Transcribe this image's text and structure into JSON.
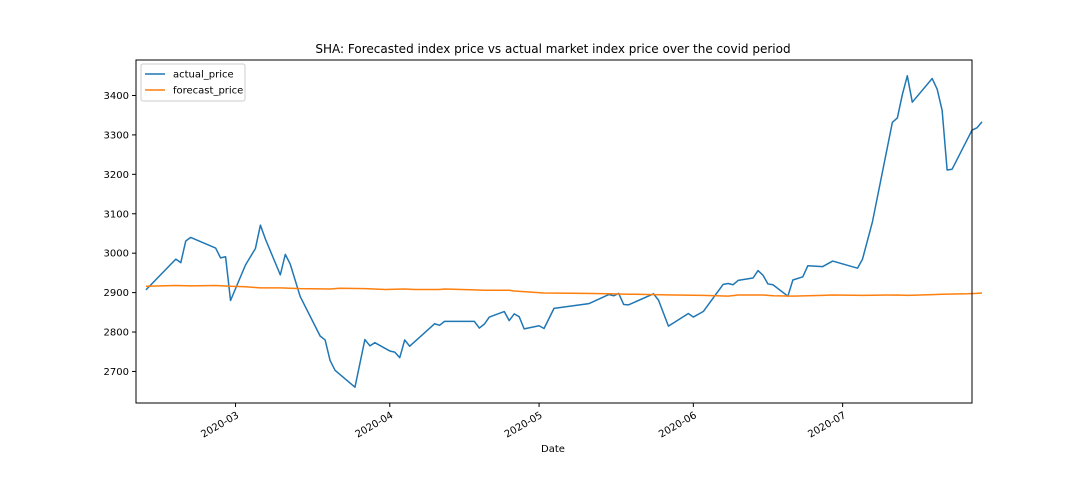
{
  "chart_data": {
    "type": "line",
    "title": "SHA: Forecasted index price vs actual market index price over the covid period",
    "xlabel": "Date",
    "ylabel": "",
    "x_range": [
      "2020-02-10",
      "2020-07-27"
    ],
    "ylim": [
      2620,
      3490
    ],
    "y_ticks": [
      2700,
      2800,
      2900,
      3000,
      3100,
      3200,
      3300,
      3400
    ],
    "x_ticks": [
      {
        "date": "2020-03-01",
        "label": "2020-03"
      },
      {
        "date": "2020-04-01",
        "label": "2020-04"
      },
      {
        "date": "2020-05-01",
        "label": "2020-05"
      },
      {
        "date": "2020-06-01",
        "label": "2020-06"
      },
      {
        "date": "2020-07-01",
        "label": "2020-07"
      }
    ],
    "grid": false,
    "legend": "top-left",
    "series": [
      {
        "name": "actual_price",
        "color": "#1f77b4",
        "points": [
          [
            "2020-02-12",
            2907
          ],
          [
            "2020-02-18",
            2985
          ],
          [
            "2020-02-19",
            2976
          ],
          [
            "2020-02-20",
            3031
          ],
          [
            "2020-02-21",
            3040
          ],
          [
            "2020-02-26",
            3013
          ],
          [
            "2020-02-27",
            2988
          ],
          [
            "2020-02-28",
            2991
          ],
          [
            "2020-02-29",
            2880
          ],
          [
            "2020-03-03",
            2970
          ],
          [
            "2020-03-05",
            3012
          ],
          [
            "2020-03-06",
            3071
          ],
          [
            "2020-03-07",
            3036
          ],
          [
            "2020-03-10",
            2945
          ],
          [
            "2020-03-11",
            2997
          ],
          [
            "2020-03-12",
            2972
          ],
          [
            "2020-03-14",
            2890
          ],
          [
            "2020-03-18",
            2790
          ],
          [
            "2020-03-19",
            2780
          ],
          [
            "2020-03-20",
            2728
          ],
          [
            "2020-03-21",
            2703
          ],
          [
            "2020-03-25",
            2660
          ],
          [
            "2020-03-27",
            2781
          ],
          [
            "2020-03-28",
            2765
          ],
          [
            "2020-03-29",
            2773
          ],
          [
            "2020-04-01",
            2752
          ],
          [
            "2020-04-02",
            2749
          ],
          [
            "2020-04-03",
            2735
          ],
          [
            "2020-04-04",
            2780
          ],
          [
            "2020-04-05",
            2764
          ],
          [
            "2020-04-10",
            2821
          ],
          [
            "2020-04-11",
            2817
          ],
          [
            "2020-04-12",
            2827
          ],
          [
            "2020-04-18",
            2827
          ],
          [
            "2020-04-19",
            2810
          ],
          [
            "2020-04-20",
            2820
          ],
          [
            "2020-04-21",
            2838
          ],
          [
            "2020-04-24",
            2852
          ],
          [
            "2020-04-25",
            2829
          ],
          [
            "2020-04-26",
            2846
          ],
          [
            "2020-04-27",
            2839
          ],
          [
            "2020-04-28",
            2808
          ],
          [
            "2020-05-01",
            2816
          ],
          [
            "2020-05-02",
            2809
          ],
          [
            "2020-05-04",
            2860
          ],
          [
            "2020-05-11",
            2872
          ],
          [
            "2020-05-15",
            2895
          ],
          [
            "2020-05-16",
            2892
          ],
          [
            "2020-05-17",
            2898
          ],
          [
            "2020-05-18",
            2870
          ],
          [
            "2020-05-19",
            2869
          ],
          [
            "2020-05-24",
            2897
          ],
          [
            "2020-05-25",
            2881
          ],
          [
            "2020-05-27",
            2815
          ],
          [
            "2020-05-31",
            2847
          ],
          [
            "2020-06-01",
            2838
          ],
          [
            "2020-06-03",
            2852
          ],
          [
            "2020-06-07",
            2921
          ],
          [
            "2020-06-08",
            2923
          ],
          [
            "2020-06-09",
            2920
          ],
          [
            "2020-06-10",
            2931
          ],
          [
            "2020-06-13",
            2937
          ],
          [
            "2020-06-14",
            2956
          ],
          [
            "2020-06-15",
            2944
          ],
          [
            "2020-06-16",
            2922
          ],
          [
            "2020-06-17",
            2920
          ],
          [
            "2020-06-20",
            2891
          ],
          [
            "2020-06-21",
            2932
          ],
          [
            "2020-06-23",
            2940
          ],
          [
            "2020-06-24",
            2968
          ],
          [
            "2020-06-27",
            2966
          ],
          [
            "2020-06-29",
            2980
          ],
          [
            "2020-07-04",
            2962
          ],
          [
            "2020-07-05",
            2985
          ],
          [
            "2020-07-07",
            3080
          ],
          [
            "2020-07-11",
            3332
          ],
          [
            "2020-07-12",
            3343
          ],
          [
            "2020-07-13",
            3402
          ],
          [
            "2020-07-14",
            3450
          ],
          [
            "2020-07-15",
            3383
          ],
          [
            "2020-07-19",
            3443
          ],
          [
            "2020-07-20",
            3416
          ],
          [
            "2020-07-21",
            3362
          ],
          [
            "2020-07-22",
            3211
          ],
          [
            "2020-07-23",
            3213
          ],
          [
            "2020-07-27",
            3312
          ],
          [
            "2020-07-28",
            3318
          ],
          [
            "2020-07-29",
            3333
          ]
        ]
      },
      {
        "name": "forecast_price",
        "color": "#ff7f0e",
        "points": [
          [
            "2020-02-12",
            2916
          ],
          [
            "2020-02-18",
            2918
          ],
          [
            "2020-02-21",
            2917
          ],
          [
            "2020-02-26",
            2918
          ],
          [
            "2020-02-29",
            2916
          ],
          [
            "2020-03-03",
            2915
          ],
          [
            "2020-03-06",
            2912
          ],
          [
            "2020-03-10",
            2912
          ],
          [
            "2020-03-14",
            2910
          ],
          [
            "2020-03-20",
            2909
          ],
          [
            "2020-03-22",
            2911
          ],
          [
            "2020-03-27",
            2910
          ],
          [
            "2020-03-31",
            2908
          ],
          [
            "2020-04-04",
            2909
          ],
          [
            "2020-04-06",
            2908
          ],
          [
            "2020-04-11",
            2908
          ],
          [
            "2020-04-12",
            2909
          ],
          [
            "2020-04-18",
            2907
          ],
          [
            "2020-04-20",
            2906
          ],
          [
            "2020-04-25",
            2906
          ],
          [
            "2020-04-26",
            2904
          ],
          [
            "2020-05-02",
            2899
          ],
          [
            "2020-05-10",
            2898
          ],
          [
            "2020-05-15",
            2897
          ],
          [
            "2020-05-19",
            2896
          ],
          [
            "2020-05-24",
            2895
          ],
          [
            "2020-05-28",
            2894
          ],
          [
            "2020-06-03",
            2893
          ],
          [
            "2020-06-08",
            2891
          ],
          [
            "2020-06-10",
            2894
          ],
          [
            "2020-06-15",
            2894
          ],
          [
            "2020-06-17",
            2892
          ],
          [
            "2020-06-21",
            2891
          ],
          [
            "2020-06-24",
            2892
          ],
          [
            "2020-06-27",
            2893
          ],
          [
            "2020-06-29",
            2894
          ],
          [
            "2020-07-05",
            2893
          ],
          [
            "2020-07-12",
            2894
          ],
          [
            "2020-07-14",
            2893
          ],
          [
            "2020-07-19",
            2895
          ],
          [
            "2020-07-21",
            2896
          ],
          [
            "2020-07-26",
            2897
          ],
          [
            "2020-07-28",
            2898
          ],
          [
            "2020-07-29",
            2899
          ]
        ]
      }
    ]
  }
}
